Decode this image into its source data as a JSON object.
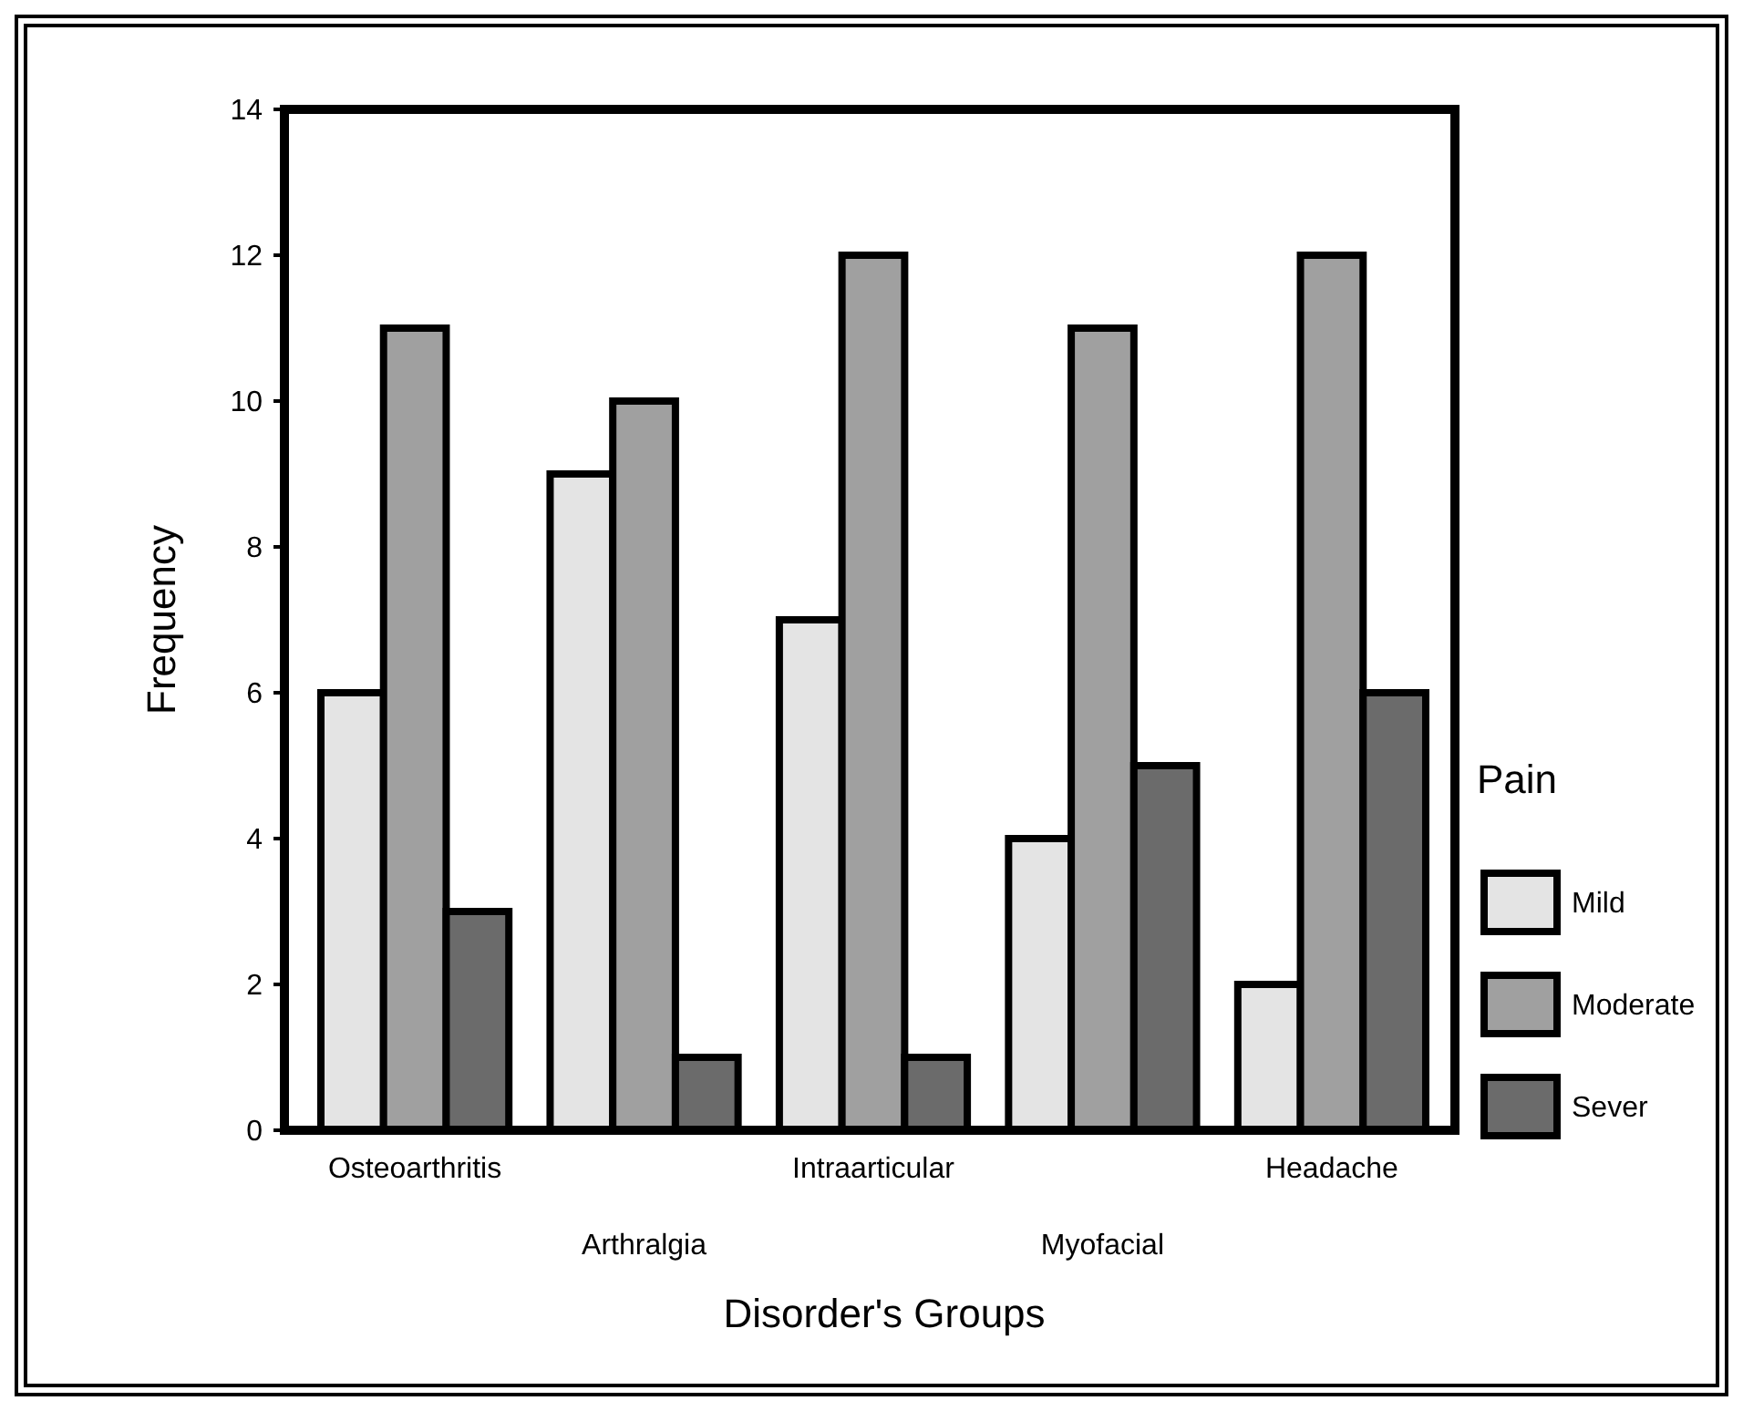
{
  "chart_data": {
    "type": "bar",
    "xlabel": "Disorder's Groups",
    "ylabel": "Frequency",
    "legend_title": "Pain",
    "categories": [
      "Osteoarthritis",
      "Arthralgia",
      "Intraarticular",
      "Myofacial",
      "Headache"
    ],
    "series": [
      {
        "name": "Mild",
        "color": "#e4e4e4",
        "values": [
          6,
          9,
          7,
          4,
          2
        ]
      },
      {
        "name": "Moderate",
        "color": "#a0a0a0",
        "values": [
          11,
          10,
          12,
          11,
          12
        ]
      },
      {
        "name": "Sever",
        "color": "#6b6b6b",
        "values": [
          3,
          1,
          1,
          5,
          6
        ]
      }
    ],
    "ylim": [
      0,
      14
    ],
    "yticks": [
      0,
      2,
      4,
      6,
      8,
      10,
      12,
      14
    ],
    "grid": false,
    "legend": "right"
  }
}
